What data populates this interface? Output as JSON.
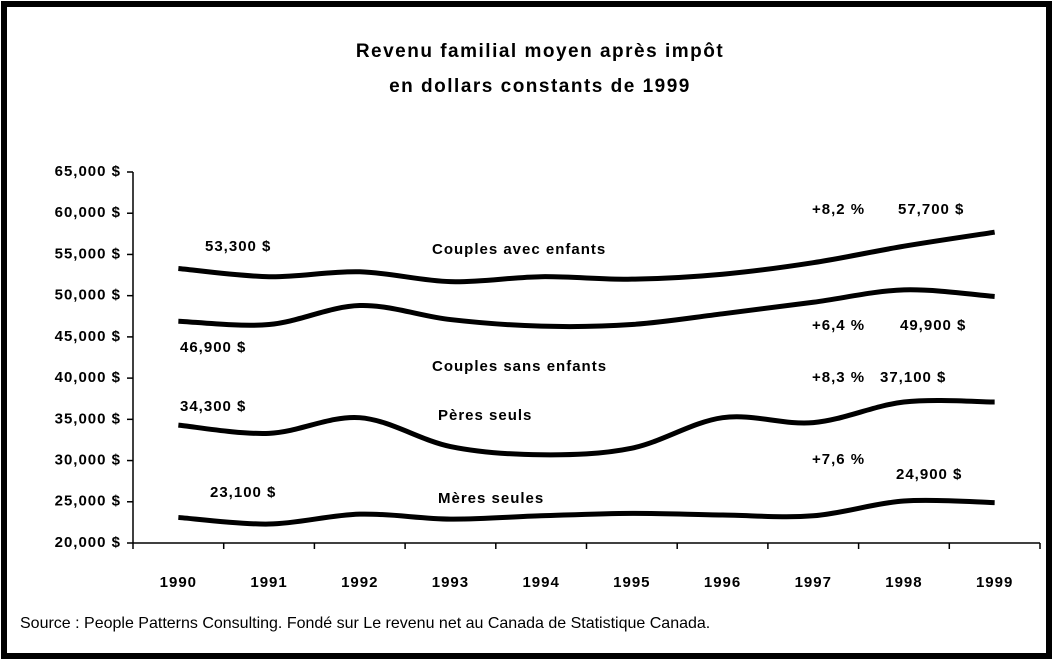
{
  "chart_data": {
    "type": "line",
    "title": [
      "Revenu familial moyen après impôt",
      "en dollars constants de 1999"
    ],
    "source": "Source : People Patterns Consulting. Fondé sur Le revenu net au Canada de Statistique Canada.",
    "categories": [
      "1990",
      "1991",
      "1992",
      "1993",
      "1994",
      "1995",
      "1996",
      "1997",
      "1998",
      "1999"
    ],
    "ylim": [
      20000,
      65000
    ],
    "yticks": [
      {
        "value": 20000,
        "label": "20,000 $"
      },
      {
        "value": 25000,
        "label": "25,000 $"
      },
      {
        "value": 30000,
        "label": "30,000 $"
      },
      {
        "value": 35000,
        "label": "35,000 $"
      },
      {
        "value": 40000,
        "label": "40,000 $"
      },
      {
        "value": 45000,
        "label": "45,000 $"
      },
      {
        "value": 50000,
        "label": "50,000 $"
      },
      {
        "value": 55000,
        "label": "55,000 $"
      },
      {
        "value": 60000,
        "label": "60,000 $"
      },
      {
        "value": 65000,
        "label": "65,000 $"
      }
    ],
    "series": [
      {
        "name": "Couples avec enfants",
        "color": "#000000",
        "annotation": "+8,2 %",
        "values": [
          53300,
          52300,
          52900,
          51700,
          52300,
          52000,
          52600,
          54000,
          56000,
          57700
        ],
        "value_labels": [
          "53,300 $",
          null,
          null,
          null,
          null,
          null,
          null,
          null,
          null,
          "57,700 $"
        ]
      },
      {
        "name": "Couples sans enfants",
        "color": "#000000",
        "annotation": "+6,4 %",
        "values": [
          46900,
          46500,
          48800,
          47100,
          46300,
          46500,
          47800,
          49200,
          50700,
          49900
        ],
        "value_labels": [
          "46,900 $",
          null,
          null,
          null,
          null,
          null,
          null,
          null,
          null,
          "49,900 $"
        ]
      },
      {
        "name": "Pères seuls",
        "color": "#000000",
        "annotation": "+8,3 %",
        "values": [
          34300,
          33300,
          35200,
          31700,
          30700,
          31500,
          35200,
          34600,
          37100,
          37100
        ],
        "value_labels": [
          "34,300 $",
          null,
          null,
          null,
          null,
          null,
          null,
          null,
          null,
          "37,100 $"
        ]
      },
      {
        "name": "Mères seules",
        "color": "#000000",
        "annotation": "+7,6 %",
        "values": [
          23100,
          22300,
          23500,
          22900,
          23300,
          23600,
          23400,
          23300,
          25100,
          24900
        ],
        "value_labels": [
          "23,100 $",
          null,
          null,
          null,
          null,
          null,
          null,
          null,
          null,
          "24,900 $"
        ]
      }
    ]
  }
}
